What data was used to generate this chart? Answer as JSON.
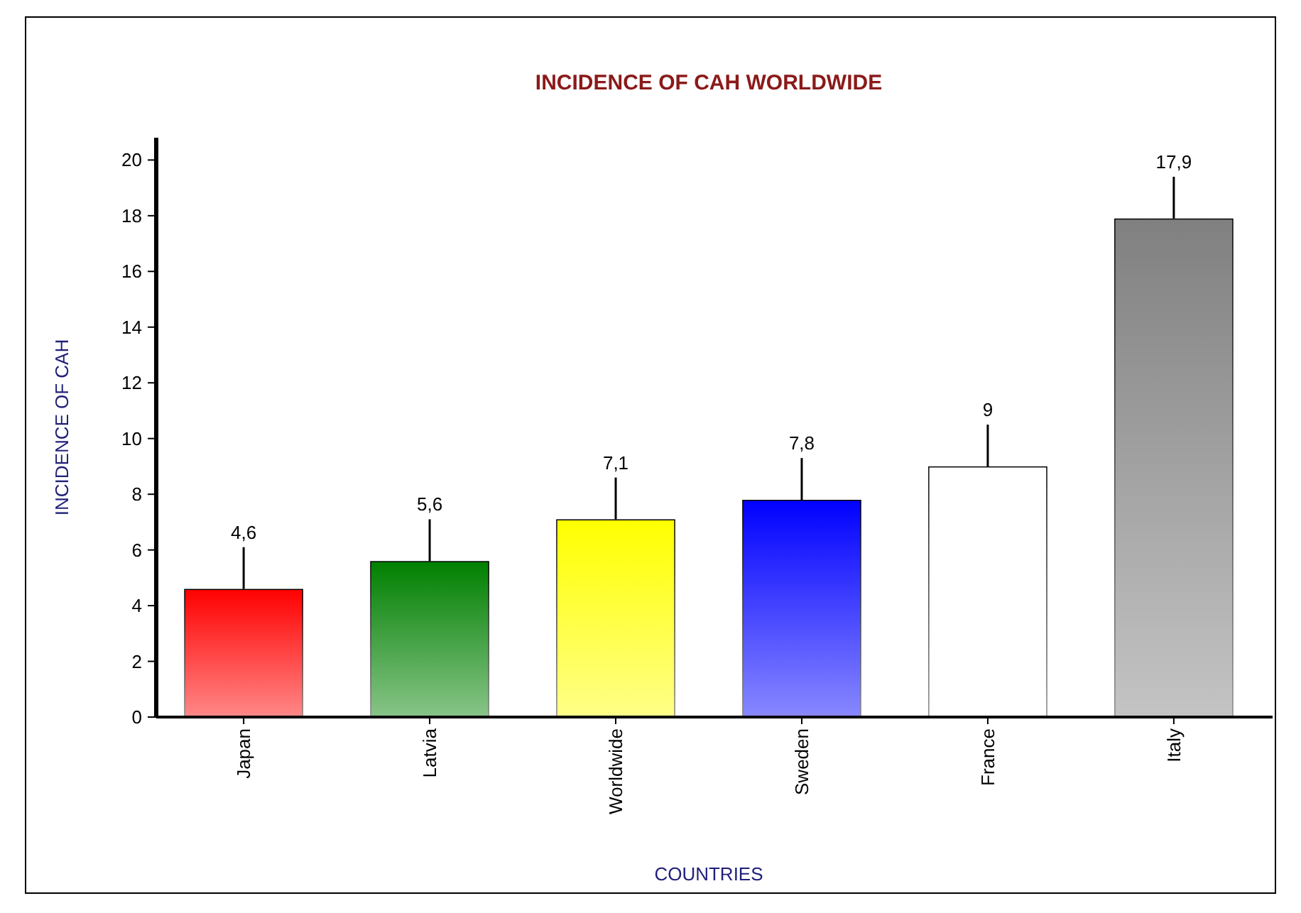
{
  "chart_data": {
    "type": "bar",
    "title": "INCIDENCE OF CAH WORLDWIDE",
    "xlabel": "COUNTRIES",
    "ylabel": "INCIDENCE OF CAH",
    "categories": [
      "Japan",
      "Latvia",
      "Worldwide",
      "Sweden",
      "France",
      "Italy"
    ],
    "values": [
      4.6,
      5.6,
      7.1,
      7.8,
      9,
      17.9
    ],
    "colors": [
      "#ff0000",
      "#008000",
      "#ffff00",
      "#0000ff",
      "#ffffff",
      "#808080"
    ],
    "value_labels": [
      "4,6",
      "5,6",
      "7,1",
      "7,8",
      "9",
      "17,9"
    ],
    "errors": [
      [
        4.6,
        6.1
      ],
      [
        5.6,
        7.1
      ],
      [
        7.1,
        8.6
      ],
      [
        7.8,
        9.3
      ],
      [
        9,
        10.5
      ],
      [
        17.9,
        19.4
      ]
    ],
    "ylim": [
      0,
      20.8
    ],
    "yticks": [
      0,
      2,
      4,
      6,
      8,
      10,
      12,
      14,
      16,
      18,
      20
    ],
    "grid": false
  }
}
